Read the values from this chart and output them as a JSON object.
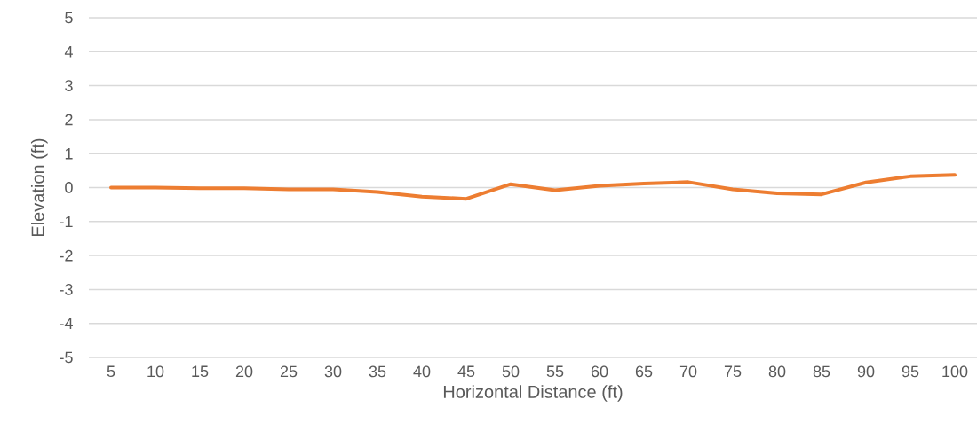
{
  "chart_data": {
    "type": "line",
    "xlabel": "Horizontal Distance (ft)",
    "ylabel": "Elevation (ft)",
    "categories": [
      "5",
      "10",
      "15",
      "20",
      "25",
      "30",
      "35",
      "40",
      "45",
      "50",
      "55",
      "60",
      "65",
      "70",
      "75",
      "80",
      "85",
      "90",
      "95",
      "100"
    ],
    "series": [
      {
        "color": "#ed7d31",
        "values": [
          0,
          0,
          -0.02,
          -0.02,
          -0.05,
          -0.05,
          -0.13,
          -0.27,
          -0.33,
          0.1,
          -0.08,
          0.05,
          0.12,
          0.16,
          -0.05,
          -0.17,
          -0.2,
          0.15,
          0.33,
          0.37
        ]
      }
    ],
    "ylim": [
      -5,
      5
    ],
    "yticks": [
      -5,
      -4,
      -3,
      -2,
      -1,
      0,
      1,
      2,
      3,
      4,
      5
    ],
    "grid": "y",
    "legend": false,
    "marker": "none",
    "line_style": "solid"
  }
}
